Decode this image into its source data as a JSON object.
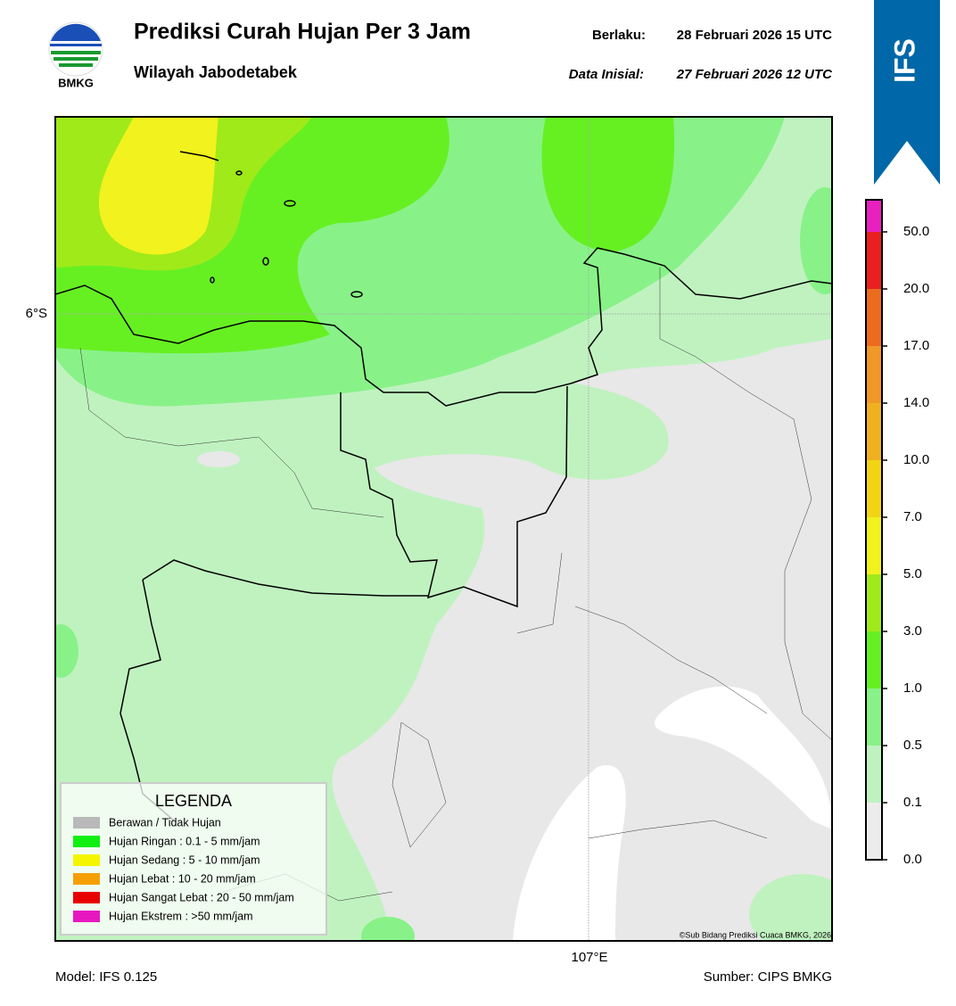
{
  "header": {
    "title": "Prediksi Curah Hujan Per 3 Jam",
    "subtitle": "Wilayah Jabodetabek",
    "logo_text": "BMKG",
    "valid_label": "Berlaku:",
    "valid_value": "28 Februari 2026 15 UTC",
    "init_label": "Data Inisial:",
    "init_value": "27 Februari 2026 12 UTC",
    "badge": "IFS"
  },
  "map": {
    "lat_label": "6°S",
    "lon_label": "107°E",
    "credit": "©Sub Bidang Prediksi Cuaca BMKG, 2026"
  },
  "legend": {
    "title": "LEGENDA",
    "items": [
      {
        "name": "Berawan / Tidak Hujan",
        "color": "#b9b9b9"
      },
      {
        "name": "Hujan Ringan : 0.1 - 5 mm/jam",
        "color": "#10f010"
      },
      {
        "name": "Hujan Sedang : 5 - 10 mm/jam",
        "color": "#f5f500"
      },
      {
        "name": "Hujan Lebat : 10 - 20 mm/jam",
        "color": "#f5a000"
      },
      {
        "name": "Hujan Sangat Lebat : 20 - 50 mm/jam",
        "color": "#e80000"
      },
      {
        "name": "Hujan Ekstrem : >50 mm/jam",
        "color": "#e818c0"
      }
    ]
  },
  "colorbar": {
    "ticks": [
      {
        "value": 0,
        "label": "0.0"
      },
      0.1,
      0.5,
      {
        "value": 1,
        "label": "1.0"
      },
      {
        "value": 3,
        "label": "3.0"
      },
      {
        "value": 5,
        "label": "5.0"
      },
      {
        "value": 7,
        "label": "7.0"
      },
      {
        "value": 10,
        "label": "10.0"
      },
      {
        "value": 14,
        "label": "14.0"
      },
      {
        "value": 17,
        "label": "17.0"
      },
      {
        "value": 20,
        "label": "20.0"
      },
      {
        "value": 50,
        "label": "50.0"
      }
    ],
    "colors": [
      "#ececec",
      "#c0f2c0",
      "#88f288",
      "#66f022",
      "#a0ea1a",
      "#f2f21e",
      "#f2d414",
      "#f0b020",
      "#f09828",
      "#ec6c1e",
      "#e82020",
      "#e820c0"
    ]
  },
  "footer": {
    "model": "Model: IFS 0.125",
    "source": "Sumber: CIPS BMKG"
  }
}
